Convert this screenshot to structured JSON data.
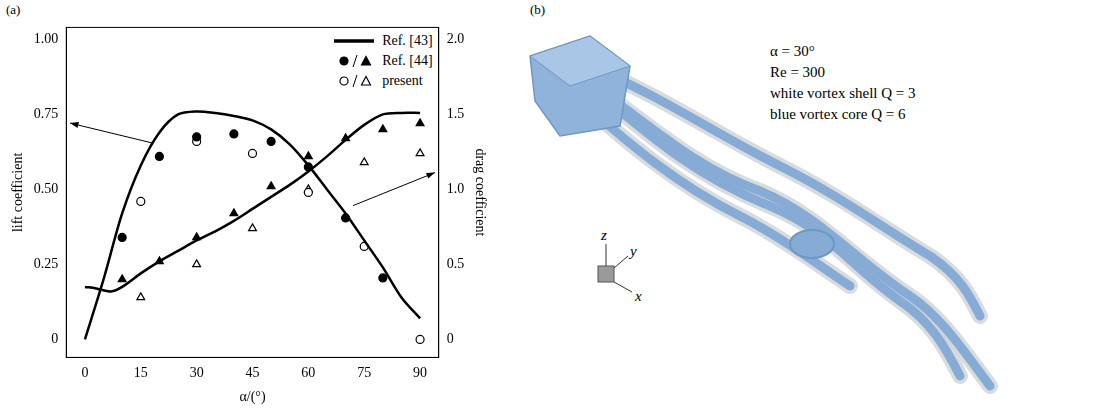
{
  "chart_data": {
    "type": "line",
    "title": "(a)",
    "x_label": "α/(°)",
    "y_label": "lift coefficient",
    "y2_label": "drag coefficient",
    "xlim": [
      -5,
      95
    ],
    "xticks": [
      0,
      15,
      30,
      45,
      60,
      75,
      90
    ],
    "ylim": [
      -0.06,
      1.04
    ],
    "yticks": [
      0,
      0.25,
      {
        "value": 0.5,
        "label": "0.50"
      },
      0.75,
      {
        "value": 1,
        "label": "1.00"
      }
    ],
    "y2lim": [
      -0.12,
      2.08
    ],
    "y2ticks": [
      0,
      0.5,
      {
        "value": 1,
        "label": "1.0"
      },
      1.5,
      {
        "value": 2,
        "label": "2.0"
      }
    ],
    "grid": false,
    "legend": "top-right",
    "series": [
      {
        "name": "Ref. [43]",
        "type": "line",
        "color": "#000000",
        "line_style": "solid",
        "axis": "y",
        "x": [
          0,
          5,
          10,
          15,
          20,
          25,
          30,
          35,
          40,
          45,
          50,
          55,
          60,
          65,
          70,
          75,
          80,
          85,
          90
        ],
        "values": [
          0,
          0.2,
          0.42,
          0.58,
          0.69,
          0.75,
          0.76,
          0.755,
          0.745,
          0.73,
          0.7,
          0.65,
          0.58,
          0.5,
          0.42,
          0.33,
          0.24,
          0.14,
          0.07
        ]
      },
      {
        "name": "Ref. [43]",
        "type": "line",
        "color": "#000000",
        "line_style": "solid",
        "axis": "y2",
        "x": [
          0,
          3,
          7,
          10,
          15,
          20,
          25,
          30,
          35,
          40,
          45,
          50,
          55,
          60,
          65,
          70,
          75,
          80,
          85,
          90
        ],
        "values": [
          0.35,
          0.34,
          0.32,
          0.35,
          0.44,
          0.52,
          0.59,
          0.66,
          0.72,
          0.79,
          0.87,
          0.95,
          1.03,
          1.12,
          1.22,
          1.33,
          1.43,
          1.5,
          1.51,
          1.51
        ]
      },
      {
        "name": "Ref. [44]",
        "type": "scatter",
        "color": "#000000",
        "marker": "circle",
        "axis": "y",
        "x": [
          10,
          20,
          30,
          40,
          50,
          60,
          70,
          80
        ],
        "values": [
          0.34,
          0.61,
          0.675,
          0.685,
          0.66,
          0.575,
          0.405,
          0.205
        ]
      },
      {
        "name": "Ref. [44]",
        "type": "scatter",
        "color": "#000000",
        "marker": "triangle",
        "axis": "y2",
        "x": [
          10,
          20,
          30,
          40,
          50,
          60,
          70,
          80,
          90
        ],
        "values": [
          0.4,
          0.52,
          0.68,
          0.84,
          1.02,
          1.22,
          1.34,
          1.4,
          1.44
        ]
      },
      {
        "name": "present",
        "type": "scatter",
        "color": "#000000",
        "marker": "circle_open",
        "axis": "y",
        "x": [
          15,
          30,
          45,
          60,
          75,
          90
        ],
        "values": [
          0.46,
          0.66,
          0.62,
          0.49,
          0.31,
          0
        ]
      },
      {
        "name": "present",
        "type": "scatter",
        "color": "#000000",
        "marker": "triangle_open",
        "axis": "y2",
        "x": [
          15,
          30,
          45,
          60,
          75,
          90
        ],
        "values": [
          0.28,
          0.5,
          0.74,
          1.0,
          1.18,
          1.24
        ]
      }
    ]
  },
  "panel_b": {
    "label": "(b)",
    "annotations": [
      "α = 30°",
      "Re = 300",
      "white vortex shell Q = 3",
      "blue vortex core Q = 6"
    ],
    "axes": [
      "z",
      "y",
      "x"
    ]
  }
}
